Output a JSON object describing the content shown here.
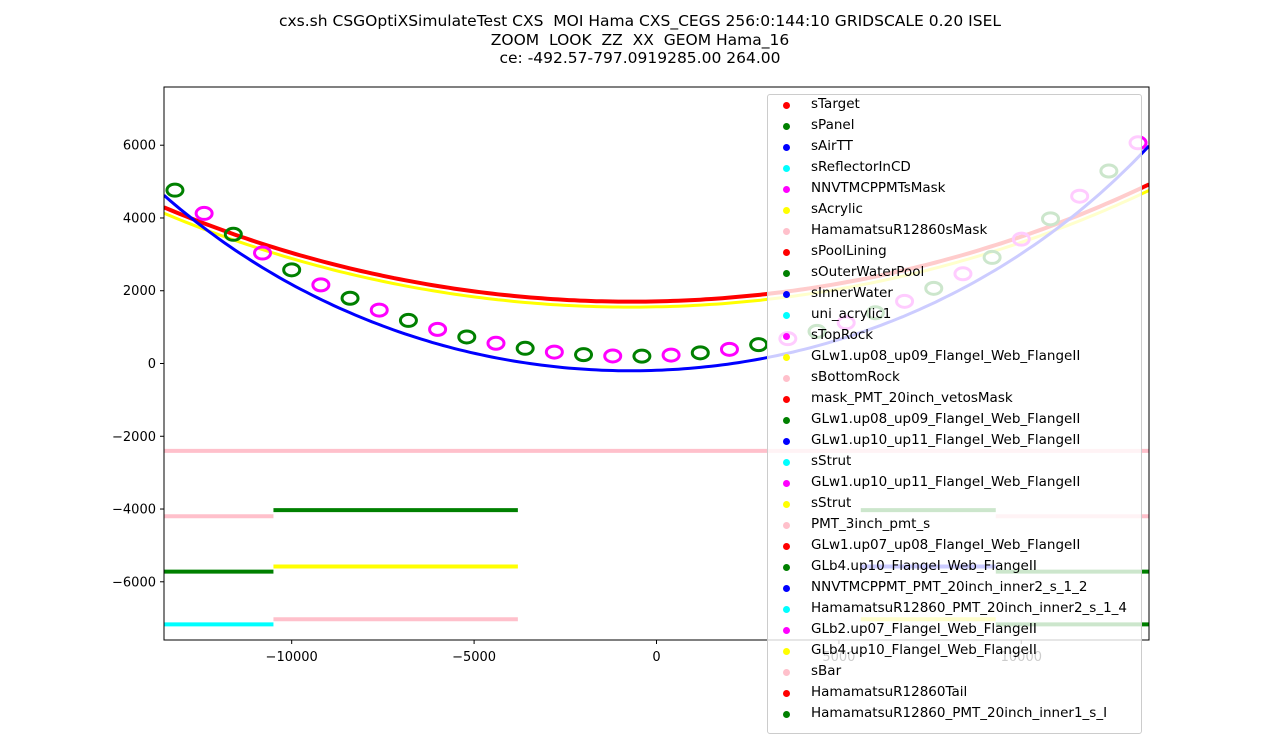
{
  "title": {
    "line1": "cxs.sh CSGOptiXSimulateTest CXS  MOI Hama CXS_CEGS 256:0:144:10 GRIDSCALE 0.20 ISEL",
    "line2": "ZOOM  LOOK  ZZ  XX  GEOM Hama_16",
    "line3": "ce: -492.57-797.0919285.00 264.00"
  },
  "chart_data": {
    "type": "scatter",
    "xlim": [
      -13500,
      13500
    ],
    "ylim": [
      -7600,
      7600
    ],
    "x_ticks": [
      -10000,
      -5000,
      0,
      5000,
      10000
    ],
    "y_ticks": [
      6000,
      4000,
      2000,
      0,
      -2000,
      -4000,
      -6000
    ],
    "x_tick_labels": [
      "−10000",
      "−5000",
      "0",
      "5000",
      "10000"
    ],
    "y_tick_labels": [
      "6000",
      "4000",
      "2000",
      "0",
      "−2000",
      "−4000",
      "−6000"
    ],
    "legend_position": "upper-right",
    "grid": false,
    "legend": [
      {
        "name": "sTarget",
        "color": "#ff0000"
      },
      {
        "name": "sPanel",
        "color": "#008000"
      },
      {
        "name": "sAirTT",
        "color": "#0000ff"
      },
      {
        "name": "sReflectorInCD",
        "color": "#00ffff"
      },
      {
        "name": "NNVTMCPPMTsMask",
        "color": "#ff00ff"
      },
      {
        "name": "sAcrylic",
        "color": "#ffff00"
      },
      {
        "name": "HamamatsuR12860sMask",
        "color": "#ffc0cb"
      },
      {
        "name": "sPoolLining",
        "color": "#ff0000"
      },
      {
        "name": "sOuterWaterPool",
        "color": "#008000"
      },
      {
        "name": "sInnerWater",
        "color": "#0000ff"
      },
      {
        "name": "uni_acrylic1",
        "color": "#00ffff"
      },
      {
        "name": "sTopRock",
        "color": "#ff00ff"
      },
      {
        "name": "GLw1.up08_up09_FlangeI_Web_FlangeII",
        "color": "#ffff00"
      },
      {
        "name": "sBottomRock",
        "color": "#ffc0cb"
      },
      {
        "name": "mask_PMT_20inch_vetosMask",
        "color": "#ff0000"
      },
      {
        "name": "GLw1.up08_up09_FlangeI_Web_FlangeII",
        "color": "#008000"
      },
      {
        "name": "GLw1.up10_up11_FlangeI_Web_FlangeII",
        "color": "#0000ff"
      },
      {
        "name": "sStrut",
        "color": "#00ffff"
      },
      {
        "name": "GLw1.up10_up11_FlangeI_Web_FlangeII",
        "color": "#ff00ff"
      },
      {
        "name": "sStrut",
        "color": "#ffff00"
      },
      {
        "name": "PMT_3inch_pmt_s",
        "color": "#ffc0cb"
      },
      {
        "name": "GLw1.up07_up08_FlangeI_Web_FlangeII",
        "color": "#ff0000"
      },
      {
        "name": "GLb4.up10_FlangeI_Web_FlangeII",
        "color": "#008000"
      },
      {
        "name": "NNVTMCPPMT_PMT_20inch_inner2_s_1_2",
        "color": "#0000ff"
      },
      {
        "name": "HamamatsuR12860_PMT_20inch_inner2_s_1_4",
        "color": "#00ffff"
      },
      {
        "name": "GLb2.up07_FlangeI_Web_FlangeII",
        "color": "#ff00ff"
      },
      {
        "name": "GLb4.up10_FlangeI_Web_FlangeII",
        "color": "#ffff00"
      },
      {
        "name": "sBar",
        "color": "#ffc0cb"
      },
      {
        "name": "HamamatsuR12860Tail",
        "color": "#ff0000"
      },
      {
        "name": "HamamatsuR12860_PMT_20inch_inner1_s_I",
        "color": "#008000"
      }
    ],
    "series_geometry": {
      "outer_arc": {
        "center": [
          -700,
          34600
        ],
        "radius": 32900,
        "colors": [
          "#ff0000",
          "#ffff00"
        ]
      },
      "inner_arc": {
        "center": [
          -700,
          19200
        ],
        "radius": 19400,
        "colors": [
          "#0000ff",
          "#008000",
          "#ff00ff"
        ]
      },
      "horizontal_lines": [
        {
          "y": -2400,
          "x": [
            -13500,
            13500
          ],
          "color": "#ffc0cb"
        },
        {
          "y": -4030,
          "x": [
            -10500,
            -3800
          ],
          "color": "#008000"
        },
        {
          "y": -4030,
          "x": [
            5600,
            9300
          ],
          "color": "#008000"
        },
        {
          "y": -4200,
          "x": [
            -13500,
            -10500
          ],
          "color": "#ffc0cb"
        },
        {
          "y": -4200,
          "x": [
            9300,
            13500
          ],
          "color": "#ffc0cb"
        },
        {
          "y": -5580,
          "x": [
            -10500,
            -3800
          ],
          "color": "#ffff00"
        },
        {
          "y": -5580,
          "x": [
            5600,
            9300
          ],
          "color": "#0000ff"
        },
        {
          "y": -5720,
          "x": [
            -13500,
            -10500
          ],
          "color": "#008000"
        },
        {
          "y": -5720,
          "x": [
            9300,
            13500
          ],
          "color": "#008000"
        },
        {
          "y": -7030,
          "x": [
            -10500,
            -3800
          ],
          "color": "#ffc0cb"
        },
        {
          "y": -7030,
          "x": [
            5600,
            9300
          ],
          "color": "#ffff00"
        },
        {
          "y": -7170,
          "x": [
            -13500,
            -10500
          ],
          "color": "#00ffff"
        },
        {
          "y": -7170,
          "x": [
            9300,
            13500
          ],
          "color": "#008000"
        }
      ]
    }
  }
}
